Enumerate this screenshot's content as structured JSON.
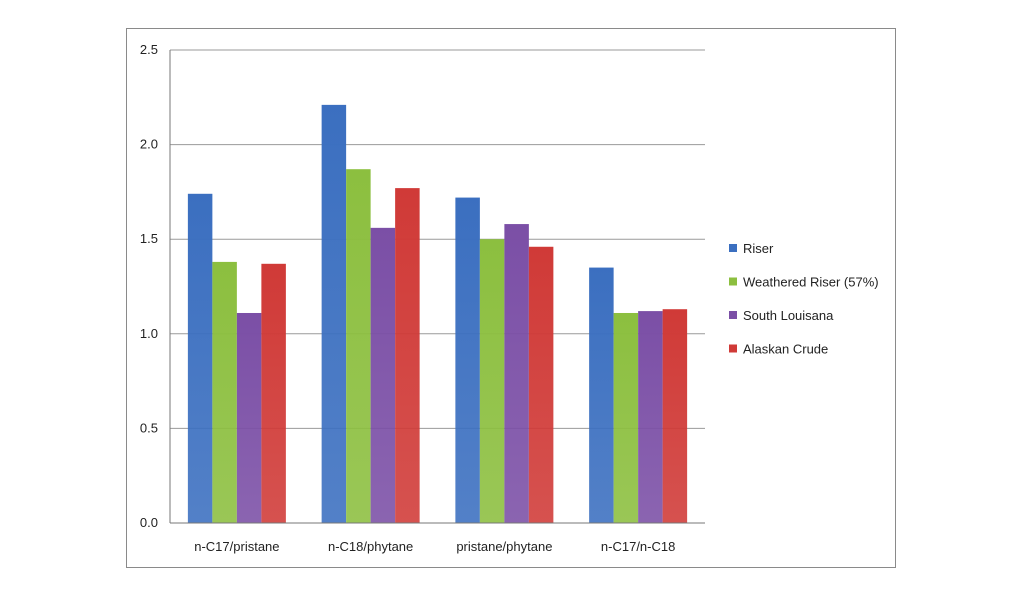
{
  "chart_data": {
    "type": "bar",
    "title": "",
    "xlabel": "",
    "ylabel": "",
    "ylim": [
      0,
      2.5
    ],
    "yticks": [
      "0.0",
      "0.5",
      "1.0",
      "1.5",
      "2.0",
      "2.5"
    ],
    "ytick_values": [
      0,
      0.5,
      1.0,
      1.5,
      2.0,
      2.5
    ],
    "grid": true,
    "legend_position": "right",
    "categories": [
      "n-C17/pristane",
      "n-C18/phytane",
      "pristane/phytane",
      "n-C17/n-C18"
    ],
    "series": [
      {
        "name": "Riser",
        "color": "#3b6fc0",
        "values": [
          1.74,
          2.21,
          1.72,
          1.35
        ]
      },
      {
        "name": "Weathered Riser (57%)",
        "color": "#8cbf3f",
        "values": [
          1.38,
          1.87,
          1.5,
          1.11
        ]
      },
      {
        "name": "South Louisana",
        "color": "#7b4fa6",
        "values": [
          1.11,
          1.56,
          1.58,
          1.12
        ]
      },
      {
        "name": "Alaskan Crude",
        "color": "#d03a37",
        "values": [
          1.37,
          1.77,
          1.46,
          1.13
        ]
      }
    ]
  }
}
